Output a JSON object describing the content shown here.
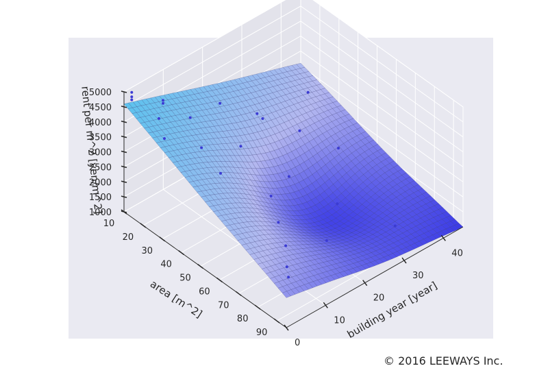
{
  "footer": {
    "copyright": "© 2016 LEEWAYS Inc."
  },
  "colors": {
    "panel": "#eaeaf2",
    "surface_high": "#4cc4ee",
    "surface_mid": "#b4b8ef",
    "surface_low": "#3a3ae6",
    "points": "#3b3bd4"
  },
  "chart_data": {
    "type": "surface3d",
    "title": "",
    "axes": {
      "x": {
        "label": "building year [year]",
        "range": [
          0,
          45
        ],
        "ticks": [
          0,
          10,
          20,
          30,
          40
        ]
      },
      "y": {
        "label": "area [m^2]",
        "range": [
          10,
          95
        ],
        "ticks": [
          10,
          20,
          30,
          40,
          50,
          60,
          70,
          80,
          90
        ]
      },
      "z": {
        "label": "rent per m^2 [yen/m^2]",
        "range": [
          1000,
          5000
        ],
        "ticks": [
          1000,
          1500,
          2000,
          2500,
          3000,
          3500,
          4000,
          4500,
          5000
        ]
      }
    },
    "surface_corners": [
      {
        "building_year": 0,
        "area": 10,
        "rent": 4600
      },
      {
        "building_year": 45,
        "area": 10,
        "rent": 2600
      },
      {
        "building_year": 0,
        "area": 95,
        "rent": 2000
      },
      {
        "building_year": 45,
        "area": 95,
        "rent": 1000
      }
    ],
    "surface_center_rent": 1400,
    "grid_on": true,
    "sample_points": [
      {
        "building_year": 1,
        "area": 12,
        "rent": 5000
      },
      {
        "building_year": 1,
        "area": 12,
        "rent": 4850
      },
      {
        "building_year": 1,
        "area": 12,
        "rent": 4750
      },
      {
        "building_year": 8,
        "area": 14,
        "rent": 4300
      },
      {
        "building_year": 8,
        "area": 14,
        "rent": 4200
      },
      {
        "building_year": 5,
        "area": 18,
        "rent": 4100
      },
      {
        "building_year": 12,
        "area": 20,
        "rent": 3700
      },
      {
        "building_year": 20,
        "area": 30,
        "rent": 2600
      },
      {
        "building_year": 30,
        "area": 18,
        "rent": 2400
      },
      {
        "building_year": 10,
        "area": 40,
        "rent": 2900
      },
      {
        "building_year": 25,
        "area": 45,
        "rent": 1900
      },
      {
        "building_year": 35,
        "area": 30,
        "rent": 2000
      },
      {
        "building_year": 15,
        "area": 60,
        "rent": 1800
      },
      {
        "building_year": 30,
        "area": 60,
        "rent": 1300
      },
      {
        "building_year": 40,
        "area": 40,
        "rent": 1500
      },
      {
        "building_year": 5,
        "area": 85,
        "rent": 2200
      },
      {
        "building_year": 2,
        "area": 92,
        "rent": 2400
      },
      {
        "building_year": 20,
        "area": 75,
        "rent": 1500
      },
      {
        "building_year": 35,
        "area": 80,
        "rent": 1100
      },
      {
        "building_year": 10,
        "area": 30,
        "rent": 3300
      },
      {
        "building_year": 28,
        "area": 25,
        "rent": 2700
      },
      {
        "building_year": 18,
        "area": 50,
        "rent": 2000
      },
      {
        "building_year": 42,
        "area": 20,
        "rent": 2300
      },
      {
        "building_year": 3,
        "area": 25,
        "rent": 3900
      },
      {
        "building_year": 22,
        "area": 15,
        "rent": 3200
      },
      {
        "building_year": 12,
        "area": 70,
        "rent": 1700
      }
    ]
  }
}
